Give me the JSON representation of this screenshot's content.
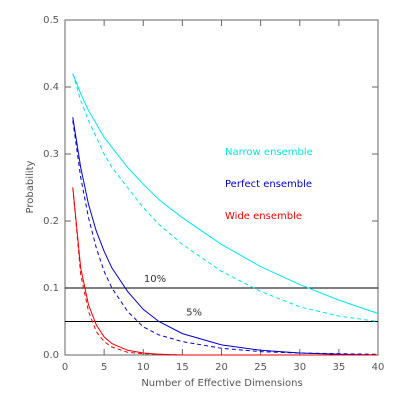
{
  "chart_data": {
    "type": "line",
    "xlabel": "Number of Effective Dimensions",
    "ylabel": "Probability",
    "x": [
      1,
      2,
      3,
      4,
      5,
      6,
      8,
      10,
      12,
      15,
      20,
      25,
      30,
      35,
      40
    ],
    "series": [
      {
        "name": "Narrow ensemble",
        "color": "#00e5ee",
        "line_style": "solid",
        "values": [
          0.42,
          0.39,
          0.365,
          0.345,
          0.325,
          0.31,
          0.28,
          0.255,
          0.232,
          0.205,
          0.165,
          0.132,
          0.105,
          0.082,
          0.062
        ]
      },
      {
        "color": "#00e5ee",
        "line_style": "dashed",
        "values": [
          0.42,
          0.38,
          0.35,
          0.325,
          0.3,
          0.28,
          0.25,
          0.22,
          0.195,
          0.165,
          0.125,
          0.095,
          0.072,
          0.058,
          0.05
        ]
      },
      {
        "name": "Perfect ensemble",
        "color": "#0000cd",
        "line_style": "solid",
        "values": [
          0.355,
          0.28,
          0.225,
          0.185,
          0.155,
          0.13,
          0.095,
          0.068,
          0.05,
          0.032,
          0.015,
          0.007,
          0.003,
          0.001,
          0
        ]
      },
      {
        "color": "#0000cd",
        "line_style": "dashed",
        "values": [
          0.35,
          0.265,
          0.205,
          0.16,
          0.125,
          0.1,
          0.065,
          0.042,
          0.03,
          0.02,
          0.01,
          0.005,
          0.003,
          0.002,
          0.001
        ]
      },
      {
        "name": "Wide ensemble",
        "color": "#ee0000",
        "line_style": "solid",
        "values": [
          0.25,
          0.13,
          0.075,
          0.045,
          0.027,
          0.017,
          0.007,
          0.003,
          0.001,
          0,
          0,
          0,
          0,
          0,
          0
        ]
      },
      {
        "color": "#ee0000",
        "line_style": "dashed",
        "values": [
          0.25,
          0.12,
          0.065,
          0.035,
          0.02,
          0.012,
          0.004,
          0.002,
          0.001,
          0,
          0,
          0,
          0,
          0,
          0
        ]
      }
    ],
    "hlines": [
      {
        "value": 0.1,
        "label": "10%"
      },
      {
        "value": 0.05,
        "label": "5%"
      }
    ],
    "xlim": [
      0,
      40
    ],
    "xticks": [
      0,
      5,
      10,
      15,
      20,
      25,
      30,
      35,
      40
    ],
    "ylim": [
      0,
      0.5
    ],
    "yticks": [
      {
        "value": 0,
        "label": "0.0"
      },
      0.1,
      0.2,
      0.3,
      0.4,
      0.5
    ]
  }
}
